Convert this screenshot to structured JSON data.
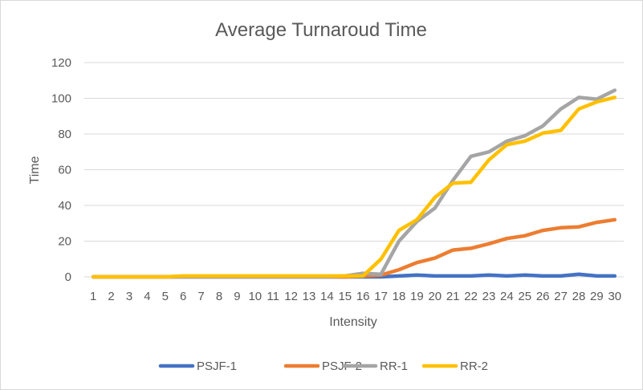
{
  "chart_data": {
    "type": "line",
    "title": "Average Turnaroud Time",
    "xlabel": "Intensity",
    "ylabel": "Time",
    "x": [
      1,
      2,
      3,
      4,
      5,
      6,
      7,
      8,
      9,
      10,
      11,
      12,
      13,
      14,
      15,
      16,
      17,
      18,
      19,
      20,
      21,
      22,
      23,
      24,
      25,
      26,
      27,
      28,
      29,
      30
    ],
    "ylim": [
      0,
      120
    ],
    "yticks": [
      0,
      20,
      40,
      60,
      80,
      100,
      120
    ],
    "grid": true,
    "legend": "bottom",
    "series": [
      {
        "name": "PSJF-1",
        "color": "#4472C4",
        "values": [
          0,
          0,
          0,
          0,
          0,
          0,
          0,
          0,
          0,
          0,
          0,
          0,
          0,
          0,
          0,
          0,
          0,
          0.5,
          1,
          0.5,
          0.5,
          0.5,
          1,
          0.5,
          1,
          0.5,
          0.5,
          1.5,
          0.5,
          0.5
        ]
      },
      {
        "name": "PSJF-2",
        "color": "#ED7D31",
        "values": [
          0,
          0,
          0,
          0,
          0,
          0,
          0,
          0,
          0,
          0,
          0,
          0,
          0,
          0,
          0,
          0.5,
          1,
          4,
          8,
          10.5,
          15,
          16,
          18.5,
          21.5,
          23,
          26,
          27.5,
          28,
          30.5,
          32
        ]
      },
      {
        "name": "RR-1",
        "color": "#A5A5A5",
        "values": [
          0,
          0,
          0,
          0,
          0,
          0,
          0,
          0,
          0,
          0,
          0,
          0,
          0,
          0,
          0.5,
          2,
          1.5,
          20,
          31,
          38.5,
          54,
          67.5,
          70,
          76,
          79,
          84.5,
          94,
          100.5,
          99.5,
          104.5
        ]
      },
      {
        "name": "RR-2",
        "color": "#FFC000",
        "values": [
          0,
          0,
          0,
          0,
          0,
          0.5,
          0.5,
          0.5,
          0.5,
          0.5,
          0.5,
          0.5,
          0.5,
          0.5,
          0.5,
          0.5,
          10,
          26,
          32,
          44.5,
          52.5,
          53,
          65.5,
          74,
          76,
          80.5,
          82,
          94,
          98,
          100.5
        ]
      }
    ]
  }
}
